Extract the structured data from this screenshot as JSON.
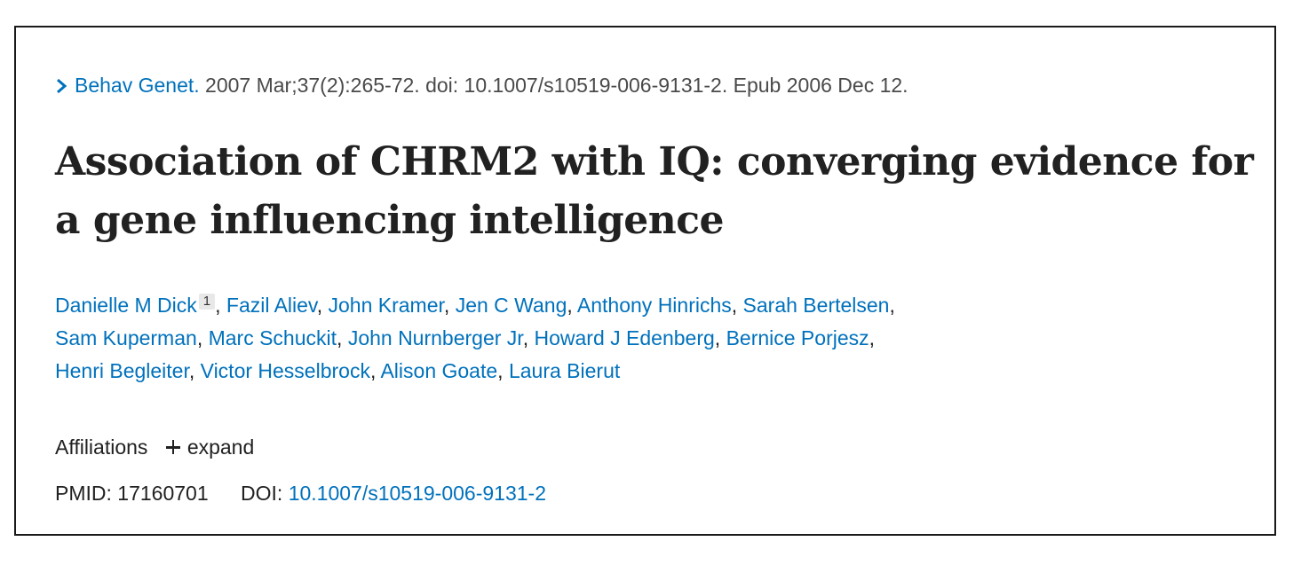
{
  "citation": {
    "journal": "Behav Genet.",
    "details": " 2007 Mar;37(2):265-72. doi: 10.1007/s10519-006-9131-2. Epub 2006 Dec 12."
  },
  "title": "Association of CHRM2 with IQ: converging evidence for a gene influencing intelligence",
  "authors": {
    "first": "Danielle M Dick",
    "first_affiliation": "1",
    "rest_line1": [
      "Fazil Aliev",
      "John Kramer",
      "Jen C Wang",
      "Anthony Hinrichs",
      "Sarah Bertelsen"
    ],
    "line2": [
      "Sam Kuperman",
      "Marc Schuckit",
      "John Nurnberger Jr",
      "Howard J Edenberg",
      "Bernice Porjesz"
    ],
    "line3": [
      "Henri Begleiter",
      "Victor Hesselbrock",
      "Alison Goate",
      "Laura Bierut"
    ]
  },
  "affiliations": {
    "label": "Affiliations",
    "expand_label": "expand"
  },
  "identifiers": {
    "pmid_label": "PMID:",
    "pmid": "17160701",
    "doi_label": "DOI:",
    "doi": "10.1007/s10519-006-9131-2"
  },
  "colors": {
    "link": "#0071bc",
    "text": "#212121",
    "border": "#1a1a1a"
  }
}
